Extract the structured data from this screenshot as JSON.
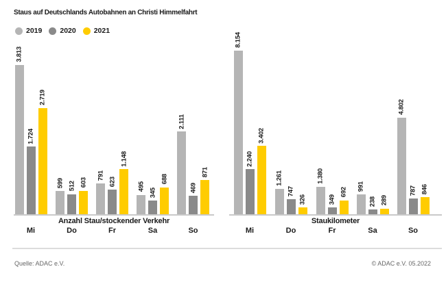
{
  "title": "Staus auf Deutschlands Autobahnen an Christi Himmelfahrt",
  "legend": [
    {
      "label": "2019",
      "color": "#b5b5b5"
    },
    {
      "label": "2020",
      "color": "#8a8a8a"
    },
    {
      "label": "2021",
      "color": "#ffcc00"
    }
  ],
  "colors": {
    "series_2019": "#b5b5b5",
    "series_2020": "#8a8a8a",
    "series_2021": "#ffcc00",
    "axis_line": "#c9c9c9",
    "text": "#1a1a1a",
    "muted_text": "#666666"
  },
  "chart_data": [
    {
      "type": "bar",
      "title": "Anzahl Stau/stockender Verkehr",
      "categories": [
        "Mi",
        "Do",
        "Fr",
        "Sa",
        "So"
      ],
      "series": [
        {
          "name": "2019",
          "color": "#b5b5b5",
          "values": [
            3813,
            599,
            791,
            495,
            2111
          ],
          "labels": [
            "3.813",
            "599",
            "791",
            "495",
            "2.111"
          ]
        },
        {
          "name": "2020",
          "color": "#8a8a8a",
          "values": [
            1724,
            512,
            623,
            345,
            469
          ],
          "labels": [
            "1.724",
            "512",
            "623",
            "345",
            "469"
          ]
        },
        {
          "name": "2021",
          "color": "#ffcc00",
          "values": [
            2719,
            603,
            1148,
            688,
            871
          ],
          "labels": [
            "2.719",
            "603",
            "1.148",
            "688",
            "871"
          ]
        }
      ],
      "xlabel": "",
      "ylabel": "",
      "ylim": [
        0,
        3813
      ],
      "grid": false,
      "legend_position": "top-left",
      "value_label_style": "rotated-90-above-bar"
    },
    {
      "type": "bar",
      "title": "Staukilometer",
      "categories": [
        "Mi",
        "Do",
        "Fr",
        "Sa",
        "So"
      ],
      "series": [
        {
          "name": "2019",
          "color": "#b5b5b5",
          "values": [
            8154,
            1261,
            1380,
            991,
            4802
          ],
          "labels": [
            "8.154",
            "1.261",
            "1.380",
            "991",
            "4.802"
          ]
        },
        {
          "name": "2020",
          "color": "#8a8a8a",
          "values": [
            2240,
            747,
            349,
            238,
            787
          ],
          "labels": [
            "2.240",
            "747",
            "349",
            "238",
            "787"
          ]
        },
        {
          "name": "2021",
          "color": "#ffcc00",
          "values": [
            3402,
            326,
            692,
            289,
            846
          ],
          "labels": [
            "3.402",
            "326",
            "692",
            "289",
            "846"
          ]
        }
      ],
      "xlabel": "",
      "ylabel": "",
      "ylim": [
        0,
        8154
      ],
      "grid": false,
      "legend_position": "top-left",
      "value_label_style": "rotated-90-above-bar"
    }
  ],
  "footer": {
    "source": "Quelle: ADAC e.V.",
    "copyright": "© ADAC e.V. 05.2022"
  }
}
